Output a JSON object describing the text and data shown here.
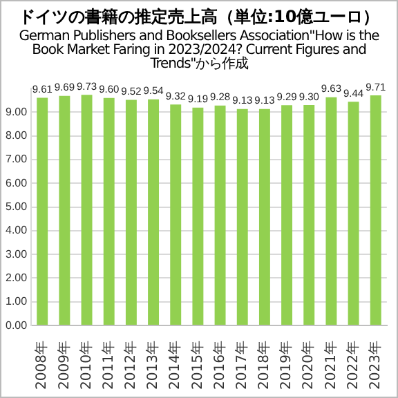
{
  "chart_data": {
    "type": "bar",
    "title": "ドイツの書籍の推定売上高（単位:10億ユーロ）",
    "subtitle": "German Publishers and Booksellers Association\"How is the Book Market Faring in 2023/2024? Current Figures and Trends\"から作成",
    "categories": [
      "2008年",
      "2009年",
      "2010年",
      "2011年",
      "2012年",
      "2013年",
      "2014年",
      "2015年",
      "2016年",
      "2017年",
      "2018年",
      "2019年",
      "2020年",
      "2021年",
      "2022年",
      "2023年"
    ],
    "values": [
      9.61,
      9.69,
      9.73,
      9.6,
      9.52,
      9.54,
      9.32,
      9.19,
      9.28,
      9.13,
      9.13,
      9.29,
      9.3,
      9.63,
      9.44,
      9.71
    ],
    "color": "#92d050",
    "ylim": [
      0,
      10
    ],
    "yticks": [
      {
        "value": 0,
        "label": "0.00"
      },
      {
        "value": 1,
        "label": "1.00"
      },
      {
        "value": 2,
        "label": "2.00"
      },
      {
        "value": 3,
        "label": "3.00"
      },
      {
        "value": 4,
        "label": "4.00"
      },
      {
        "value": 5,
        "label": "5.00"
      },
      {
        "value": 6,
        "label": "6.00"
      },
      {
        "value": 7,
        "label": "7.00"
      },
      {
        "value": 8,
        "label": "8.00"
      },
      {
        "value": 9,
        "label": "9.00"
      }
    ],
    "value_labels": [
      "9.61",
      "9.69",
      "9.73",
      "9.60",
      "9.52",
      "9.54",
      "9.32",
      "9.19",
      "9.28",
      "9.13",
      "9.13",
      "9.29",
      "9.30",
      "9.63",
      "9.44",
      "9.71"
    ],
    "grid": "y",
    "legend": false
  }
}
